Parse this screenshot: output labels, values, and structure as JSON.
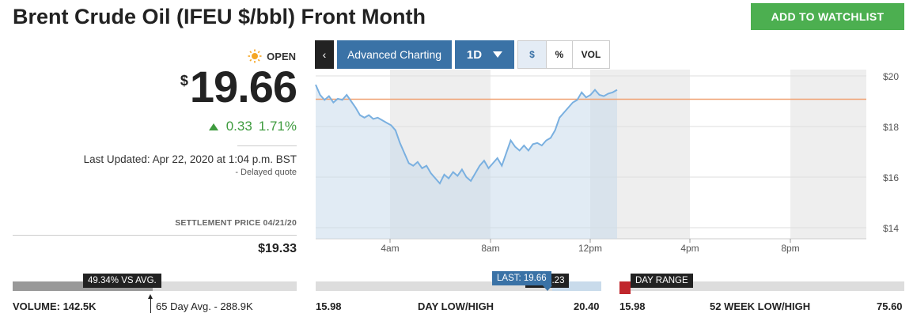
{
  "header": {
    "title": "Brent Crude Oil (IFEU $/bbl) Front Month",
    "watchlist_button": "ADD TO WATCHLIST"
  },
  "quote": {
    "status": "OPEN",
    "currency_symbol": "$",
    "price": "19.66",
    "change": "0.33",
    "change_pct": "1.71%",
    "last_updated": "Last Updated: Apr 22, 2020 at 1:04 p.m. BST",
    "delayed": "-  Delayed quote",
    "settlement_label": "SETTLEMENT PRICE 04/21/20",
    "settlement_value": "$19.33"
  },
  "toolbar": {
    "back": "‹",
    "advanced": "Advanced Charting",
    "period": "1D",
    "usd": "$",
    "pct": "%",
    "vol": "VOL"
  },
  "chart_data": {
    "type": "area",
    "x_ticks": [
      "4am",
      "8am",
      "12pm",
      "4pm",
      "8pm"
    ],
    "y_ticks": [
      "$20",
      "$18",
      "$16",
      "$14"
    ],
    "ylim": [
      14,
      20.5
    ],
    "reference_line": 19.33,
    "series": [
      {
        "values": [
          19.9,
          19.5,
          19.3,
          19.45,
          19.2,
          19.35,
          19.3,
          19.5,
          19.25,
          19.0,
          18.7,
          18.6,
          18.7,
          18.55,
          18.6,
          18.5,
          18.4,
          18.3,
          18.1,
          17.6,
          17.2,
          16.8,
          16.7,
          16.85,
          16.6,
          16.7,
          16.4,
          16.2,
          16.0,
          16.35,
          16.2,
          16.45,
          16.3,
          16.55,
          16.25,
          16.1,
          16.4,
          16.7,
          16.9,
          16.6,
          16.8,
          17.0,
          16.7,
          17.2,
          17.7,
          17.45,
          17.3,
          17.5,
          17.3,
          17.55,
          17.6,
          17.5,
          17.7,
          17.8,
          18.1,
          18.6,
          18.8,
          19.0,
          19.2,
          19.3,
          19.6,
          19.4,
          19.5,
          19.7,
          19.5,
          19.45,
          19.55,
          19.6,
          19.7
        ]
      }
    ]
  },
  "volume": {
    "badge": "49.34% VS AVG.",
    "volume_label": "VOLUME:",
    "volume_value": "142.5K",
    "avg_label": "65 Day Avg. - 288.9K",
    "ratio": 0.4934
  },
  "day_range": {
    "last_tag": "LAST: 19.66",
    "hidden_tag": "N: 20.23",
    "low": "15.98",
    "label": "DAY LOW/HIGH",
    "high": "20.40"
  },
  "week52": {
    "tag": "DAY RANGE",
    "low": "15.98",
    "label": "52 WEEK LOW/HIGH",
    "high": "75.60"
  },
  "colors": {
    "accent": "#3a72a6",
    "positive": "#3e9b3e",
    "reference": "#f0a070",
    "line": "#7ab0e0",
    "range_marker": "#c0272d"
  }
}
